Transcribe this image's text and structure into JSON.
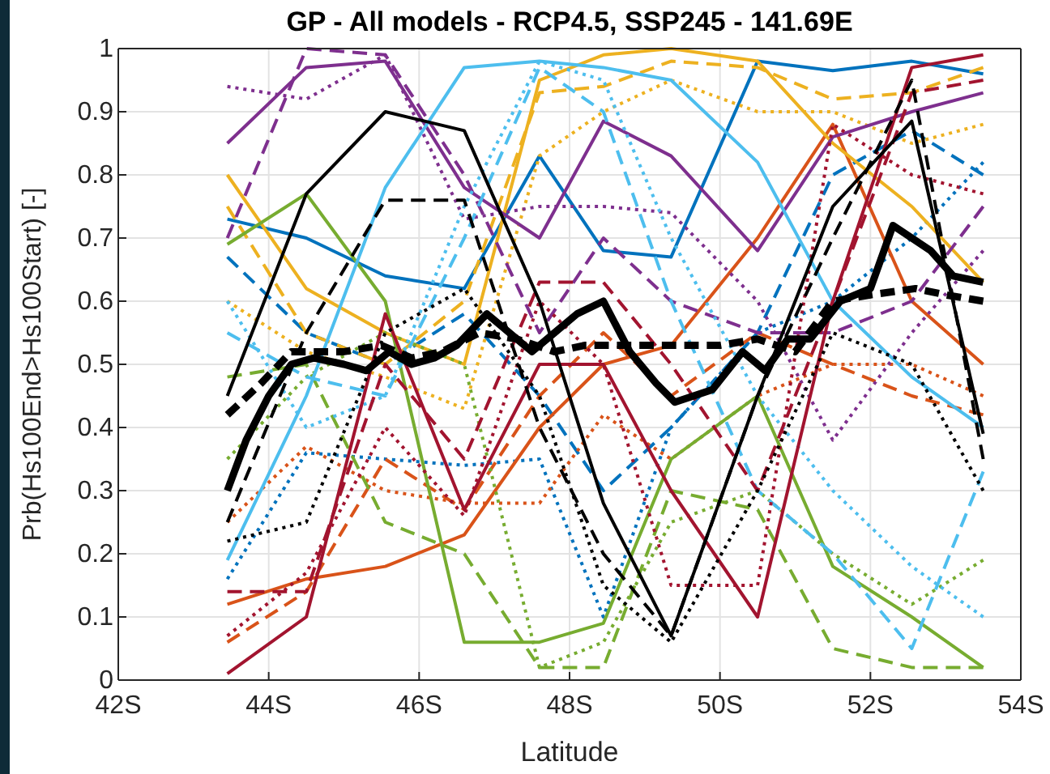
{
  "chart_data": {
    "type": "line",
    "title": "GP - All models - RCP4.5, SSP245 - 141.69E",
    "xlabel": "Latitude",
    "ylabel": "Prb(Hs100End>Hs100Start) [-]",
    "x": [
      43.45,
      44.5,
      45.55,
      46.6,
      47.6,
      48.45,
      49.35,
      50.5,
      51.5,
      52.55,
      53.5
    ],
    "xlim": [
      42,
      54
    ],
    "xticks": [
      {
        "value": 42,
        "label": "42S"
      },
      {
        "value": 44,
        "label": "44S"
      },
      {
        "value": 46,
        "label": "46S"
      },
      {
        "value": 48,
        "label": "48S"
      },
      {
        "value": 50,
        "label": "50S"
      },
      {
        "value": 52,
        "label": "52S"
      },
      {
        "value": 54,
        "label": "54S"
      }
    ],
    "ylim": [
      0,
      1
    ],
    "yticks": [
      0,
      0.1,
      0.2,
      0.3,
      0.4,
      0.5,
      0.6,
      0.7,
      0.8,
      0.9,
      1
    ],
    "grid": true,
    "marker": "none",
    "series": [
      {
        "color": "#0072bd",
        "line_style": "solid",
        "values": [
          0.73,
          0.7,
          0.64,
          0.62,
          0.83,
          0.68,
          0.67,
          0.98,
          0.965,
          0.98,
          0.96
        ]
      },
      {
        "color": "#0072bd",
        "line_style": "dashed",
        "values": [
          0.67,
          0.55,
          0.5,
          0.58,
          0.45,
          0.3,
          0.4,
          0.55,
          0.8,
          0.87,
          0.8
        ]
      },
      {
        "color": "#0072bd",
        "line_style": "dotted",
        "values": [
          0.16,
          0.36,
          0.35,
          0.34,
          0.35,
          0.1,
          0.4,
          0.55,
          0.6,
          0.7,
          0.82
        ]
      },
      {
        "color": "#d95319",
        "line_style": "solid",
        "values": [
          0.12,
          0.16,
          0.18,
          0.23,
          0.4,
          0.5,
          0.53,
          0.7,
          0.88,
          0.6,
          0.5
        ]
      },
      {
        "color": "#d95319",
        "line_style": "dashed",
        "values": [
          0.06,
          0.14,
          0.35,
          0.27,
          0.45,
          0.55,
          0.45,
          0.55,
          0.5,
          0.45,
          0.42
        ]
      },
      {
        "color": "#d95319",
        "line_style": "dotted",
        "values": [
          0.25,
          0.37,
          0.3,
          0.28,
          0.28,
          0.42,
          0.35,
          0.45,
          0.5,
          0.5,
          0.45
        ]
      },
      {
        "color": "#edb120",
        "line_style": "solid",
        "values": [
          0.8,
          0.62,
          0.55,
          0.5,
          0.95,
          0.99,
          1.0,
          0.98,
          0.85,
          0.75,
          0.63
        ]
      },
      {
        "color": "#edb120",
        "line_style": "dashed",
        "values": [
          0.75,
          0.55,
          0.5,
          0.6,
          0.93,
          0.94,
          0.98,
          0.97,
          0.92,
          0.93,
          0.97
        ]
      },
      {
        "color": "#edb120",
        "line_style": "dotted",
        "values": [
          0.6,
          0.52,
          0.48,
          0.43,
          0.83,
          0.9,
          0.95,
          0.9,
          0.9,
          0.85,
          0.88
        ]
      },
      {
        "color": "#7e2f8e",
        "line_style": "solid",
        "values": [
          0.85,
          0.97,
          0.98,
          0.78,
          0.7,
          0.885,
          0.83,
          0.68,
          0.86,
          0.9,
          0.93
        ]
      },
      {
        "color": "#7e2f8e",
        "line_style": "dashed",
        "values": [
          0.7,
          1.0,
          0.99,
          0.8,
          0.55,
          0.7,
          0.6,
          0.55,
          0.55,
          0.6,
          0.75
        ]
      },
      {
        "color": "#7e2f8e",
        "line_style": "dotted",
        "values": [
          0.94,
          0.92,
          0.99,
          0.73,
          0.75,
          0.75,
          0.74,
          0.6,
          0.38,
          0.55,
          0.68
        ]
      },
      {
        "color": "#77ac30",
        "line_style": "solid",
        "values": [
          0.69,
          0.77,
          0.6,
          0.06,
          0.06,
          0.09,
          0.35,
          0.45,
          0.18,
          0.1,
          0.02
        ]
      },
      {
        "color": "#77ac30",
        "line_style": "dashed",
        "values": [
          0.48,
          0.5,
          0.25,
          0.2,
          0.02,
          0.02,
          0.3,
          0.27,
          0.05,
          0.02,
          0.02
        ]
      },
      {
        "color": "#77ac30",
        "line_style": "dotted",
        "values": [
          0.35,
          0.48,
          0.55,
          0.5,
          0.02,
          0.06,
          0.25,
          0.3,
          0.2,
          0.12,
          0.19
        ]
      },
      {
        "color": "#4dbeee",
        "line_style": "solid",
        "values": [
          0.19,
          0.45,
          0.78,
          0.97,
          0.98,
          0.97,
          0.95,
          0.82,
          0.6,
          0.48,
          0.4
        ]
      },
      {
        "color": "#4dbeee",
        "line_style": "dashed",
        "values": [
          0.55,
          0.48,
          0.45,
          0.7,
          0.97,
          0.9,
          0.6,
          0.3,
          0.2,
          0.05,
          0.33
        ]
      },
      {
        "color": "#4dbeee",
        "line_style": "dotted",
        "values": [
          0.6,
          0.4,
          0.45,
          0.75,
          0.98,
          0.95,
          0.7,
          0.45,
          0.3,
          0.18,
          0.1
        ]
      },
      {
        "color": "#a2142f",
        "line_style": "solid",
        "values": [
          0.01,
          0.1,
          0.58,
          0.27,
          0.5,
          0.5,
          0.3,
          0.1,
          0.6,
          0.97,
          0.99
        ]
      },
      {
        "color": "#a2142f",
        "line_style": "dashed",
        "values": [
          0.14,
          0.14,
          0.5,
          0.35,
          0.63,
          0.63,
          0.5,
          0.3,
          0.6,
          0.93,
          0.95
        ]
      },
      {
        "color": "#a2142f",
        "line_style": "dotted",
        "values": [
          0.07,
          0.17,
          0.4,
          0.26,
          0.6,
          0.5,
          0.15,
          0.15,
          0.88,
          0.8,
          0.77
        ]
      },
      {
        "color": "#000000",
        "line_style": "solid",
        "values": [
          0.45,
          0.77,
          0.9,
          0.87,
          0.6,
          0.28,
          0.07,
          0.45,
          0.75,
          0.885,
          0.39
        ]
      },
      {
        "color": "#000000",
        "line_style": "dashed",
        "values": [
          0.25,
          0.55,
          0.76,
          0.76,
          0.4,
          0.2,
          0.07,
          0.45,
          0.7,
          0.95,
          0.35
        ]
      },
      {
        "color": "#000000",
        "line_style": "dotted",
        "values": [
          0.22,
          0.25,
          0.55,
          0.62,
          0.45,
          0.15,
          0.06,
          0.3,
          0.55,
          0.5,
          0.3
        ]
      },
      {
        "color": "#000000",
        "line_style": "solid",
        "x": [
          43.45,
          43.7,
          44.0,
          44.3,
          44.6,
          45.0,
          45.3,
          45.6,
          45.9,
          46.2,
          46.5,
          46.9,
          47.2,
          47.5,
          47.8,
          48.1,
          48.45,
          48.8,
          49.15,
          49.4,
          49.9,
          50.3,
          50.6,
          50.9,
          51.2,
          51.6,
          52.0,
          52.3,
          52.8,
          53.1,
          53.5
        ],
        "values": [
          0.3,
          0.38,
          0.45,
          0.5,
          0.51,
          0.5,
          0.49,
          0.52,
          0.5,
          0.51,
          0.53,
          0.58,
          0.55,
          0.52,
          0.55,
          0.58,
          0.6,
          0.52,
          0.47,
          0.44,
          0.46,
          0.52,
          0.49,
          0.54,
          0.54,
          0.6,
          0.62,
          0.72,
          0.68,
          0.64,
          0.63
        ]
      },
      {
        "color": "#000000",
        "line_style": "dashed",
        "x": [
          43.45,
          43.9,
          44.3,
          45.0,
          45.5,
          45.9,
          46.3,
          46.8,
          47.3,
          47.8,
          48.2,
          48.6,
          49.5,
          50.0,
          50.5,
          51.0,
          51.5,
          52.0,
          52.6,
          53.0,
          53.5
        ],
        "values": [
          0.42,
          0.47,
          0.52,
          0.52,
          0.53,
          0.51,
          0.52,
          0.55,
          0.54,
          0.52,
          0.53,
          0.53,
          0.53,
          0.53,
          0.54,
          0.52,
          0.6,
          0.61,
          0.62,
          0.61,
          0.6
        ]
      }
    ]
  }
}
